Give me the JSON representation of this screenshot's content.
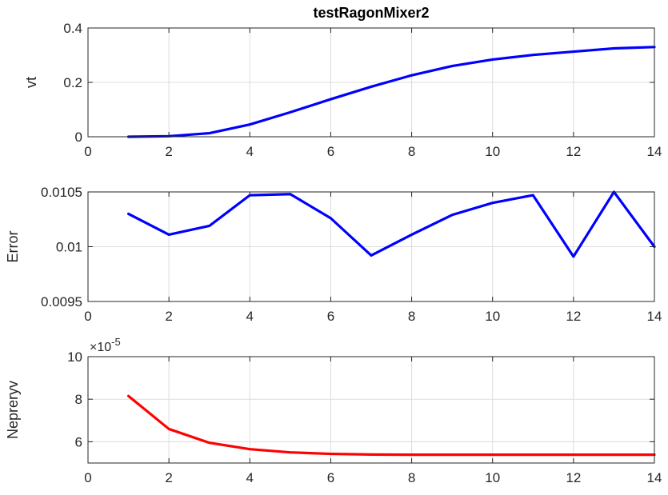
{
  "title": "testRagonMixer2",
  "chart_data": [
    {
      "type": "line",
      "ylabel": "vt",
      "xlim": [
        0,
        14
      ],
      "ylim": [
        0,
        0.4
      ],
      "xticks": [
        0,
        2,
        4,
        6,
        8,
        10,
        12,
        14
      ],
      "xtick_labels": [
        "0",
        "2",
        "4",
        "6",
        "8",
        "10",
        "12",
        "14"
      ],
      "yticks": [
        0,
        0.2,
        0.4
      ],
      "ytick_labels": [
        "0",
        "0.2",
        "0.4"
      ],
      "grid": true,
      "series": [
        {
          "color": "#0000ff",
          "x": [
            1,
            2,
            3,
            4,
            5,
            6,
            7,
            8,
            9,
            10,
            11,
            12,
            13,
            14
          ],
          "y": [
            0.0,
            0.002,
            0.013,
            0.045,
            0.09,
            0.138,
            0.184,
            0.226,
            0.26,
            0.284,
            0.301,
            0.313,
            0.325,
            0.33
          ]
        }
      ]
    },
    {
      "type": "line",
      "ylabel": "Error",
      "xlim": [
        0,
        14
      ],
      "ylim": [
        0.0095,
        0.0105
      ],
      "xticks": [
        0,
        2,
        4,
        6,
        8,
        10,
        12,
        14
      ],
      "xtick_labels": [
        "0",
        "2",
        "4",
        "6",
        "8",
        "10",
        "12",
        "14"
      ],
      "yticks": [
        0.0095,
        0.01,
        0.0105
      ],
      "ytick_labels": [
        "0.0095",
        "0.01",
        "0.0105"
      ],
      "grid": true,
      "series": [
        {
          "color": "#0000ff",
          "x": [
            1,
            2,
            3,
            4,
            5,
            6,
            7,
            8,
            9,
            10,
            11,
            12,
            13,
            14
          ],
          "y": [
            0.0103,
            0.01011,
            0.01019,
            0.01047,
            0.01048,
            0.01026,
            0.00992,
            0.01011,
            0.01029,
            0.0104,
            0.01047,
            0.00991,
            0.0105,
            0.01
          ]
        }
      ]
    },
    {
      "type": "line",
      "ylabel": "Nepreryv",
      "xlim": [
        0,
        14
      ],
      "ylim": [
        5,
        10
      ],
      "exponent_label": "×10",
      "exponent_power": "-5",
      "xticks": [
        0,
        2,
        4,
        6,
        8,
        10,
        12,
        14
      ],
      "xtick_labels": [
        "0",
        "2",
        "4",
        "6",
        "8",
        "10",
        "12",
        "14"
      ],
      "yticks": [
        6,
        8,
        10
      ],
      "ytick_labels": [
        "6",
        "8",
        "10"
      ],
      "grid": true,
      "series": [
        {
          "color": "#ff0000",
          "x": [
            1,
            2,
            3,
            4,
            5,
            6,
            7,
            8,
            9,
            10,
            11,
            12,
            13,
            14
          ],
          "y": [
            8.15,
            6.6,
            5.95,
            5.65,
            5.5,
            5.43,
            5.4,
            5.39,
            5.39,
            5.39,
            5.39,
            5.39,
            5.39,
            5.39
          ]
        }
      ]
    }
  ]
}
